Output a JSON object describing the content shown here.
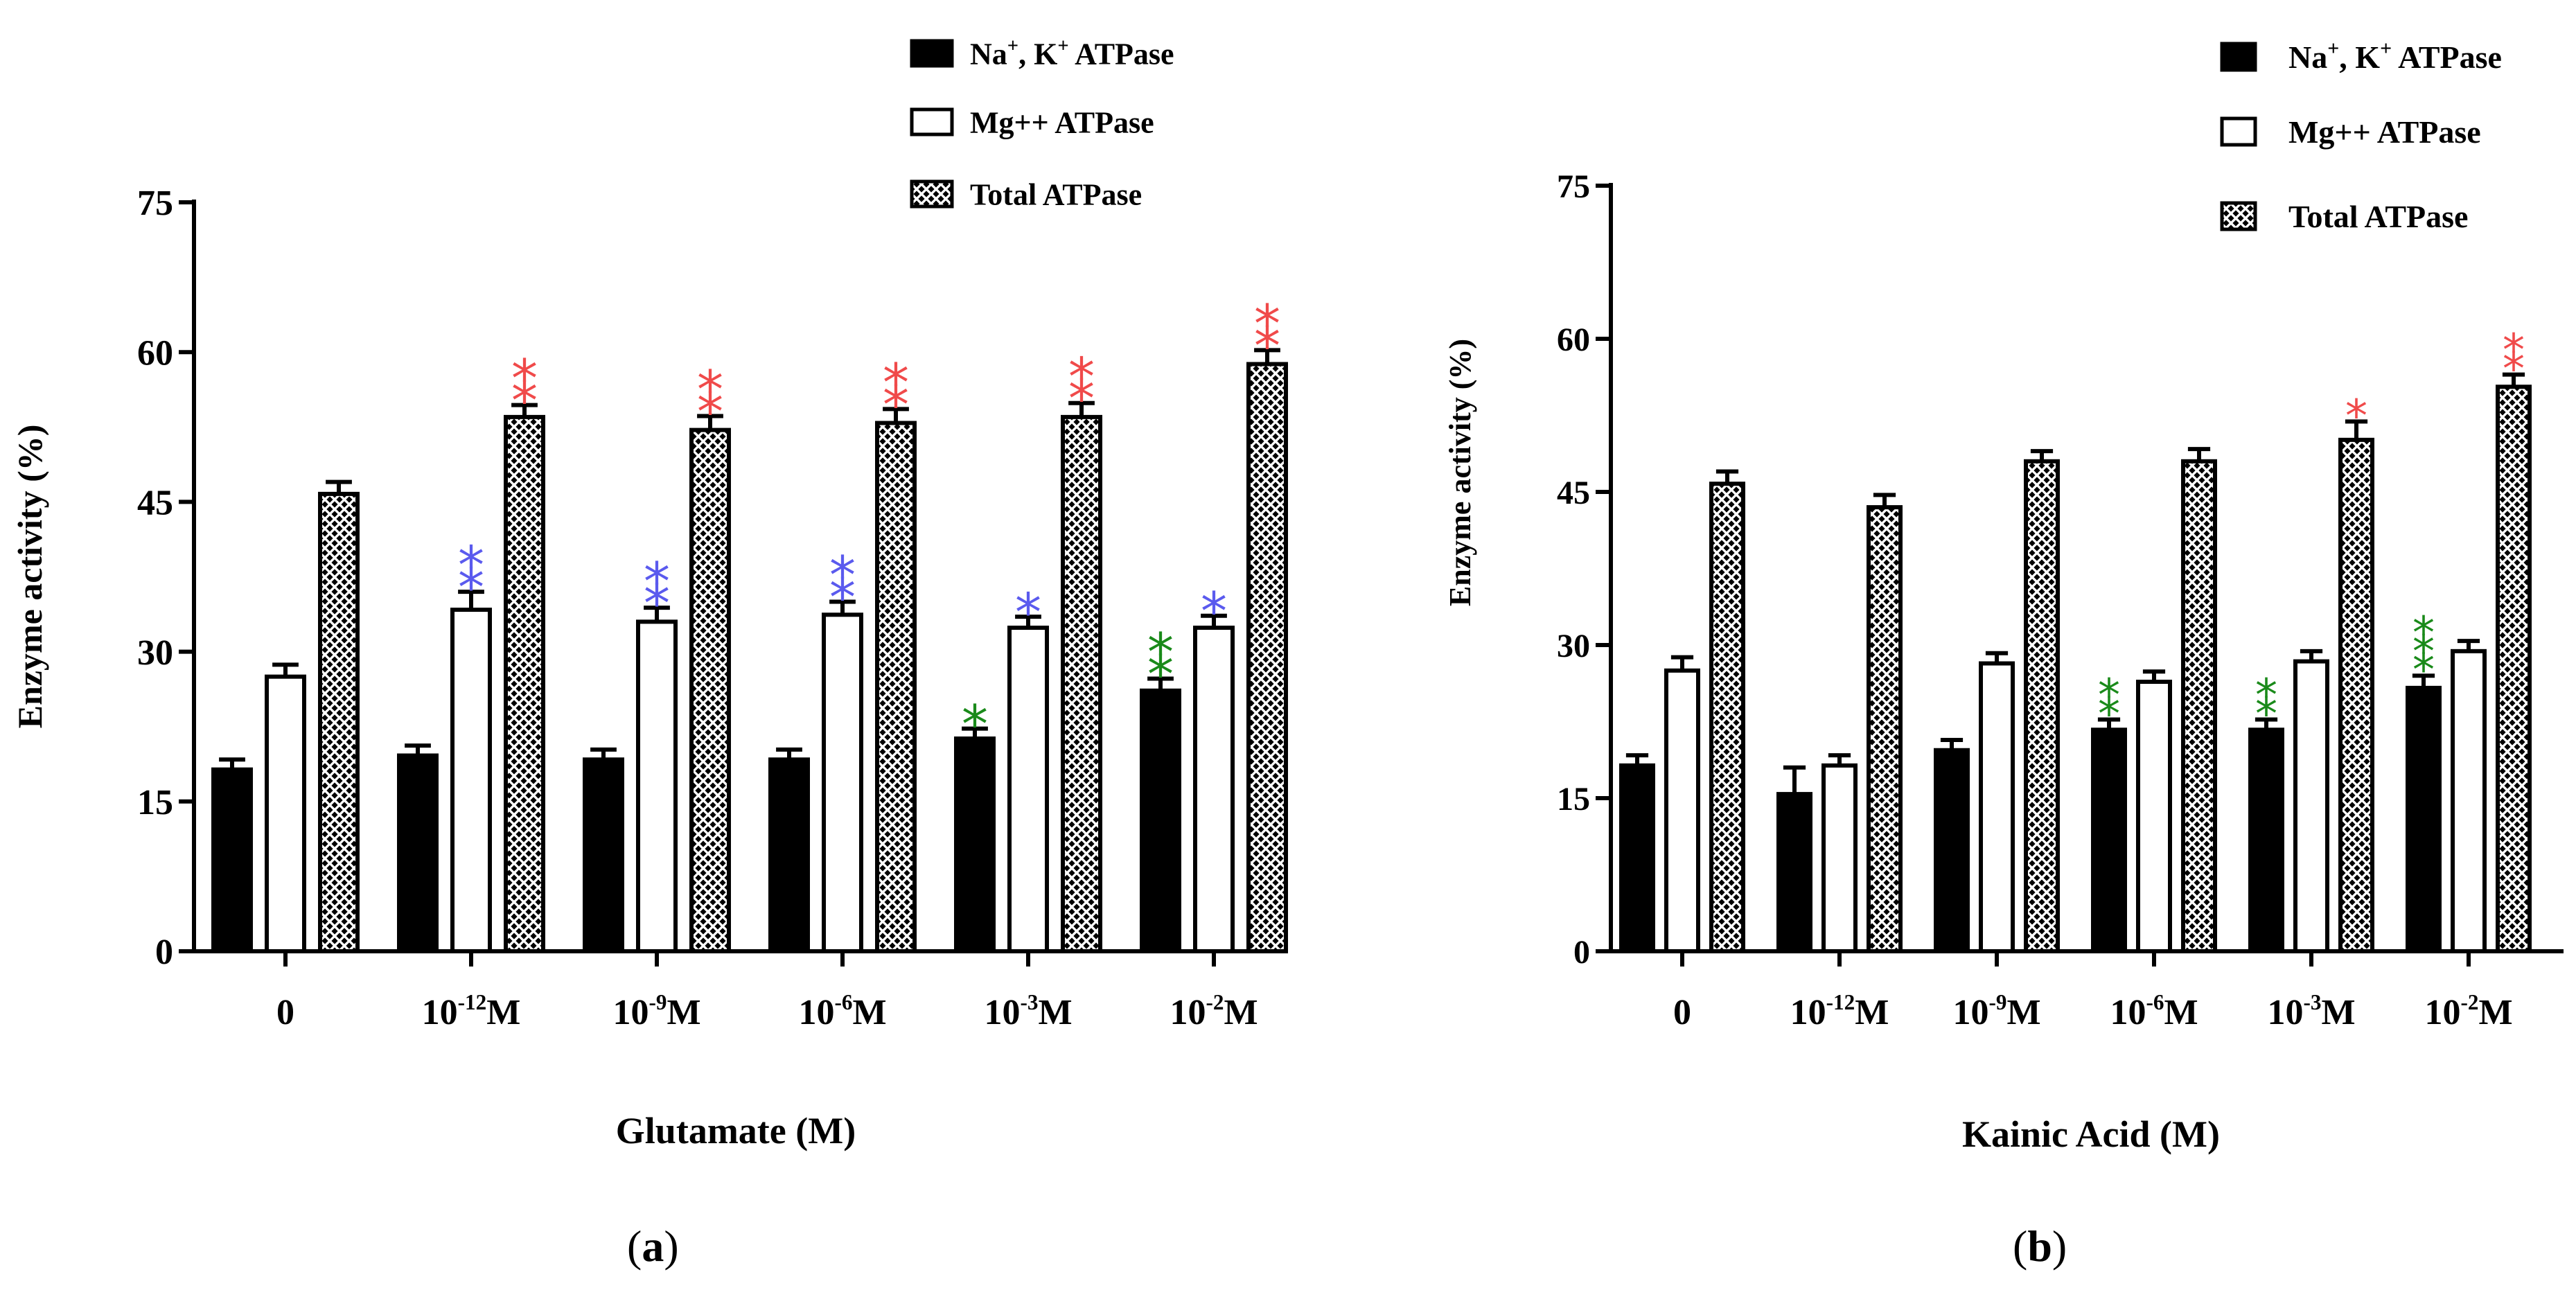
{
  "panels": [
    {
      "label_open": "(",
      "label_letter": "a",
      "label_close": ")"
    },
    {
      "label_open": "(",
      "label_letter": "b",
      "label_close": ")"
    }
  ],
  "colors": {
    "sig_total": "#f04a4a",
    "sig_mg": "#5a5aee",
    "sig_na": "#1a8a1a",
    "bar_fill": "#000000",
    "hatch_bg": "#000000",
    "hatch_line": "#ffffff"
  },
  "chart_data": [
    {
      "type": "bar",
      "title": "",
      "xlabel": "Glutamate (M)",
      "ylabel": "Enzyme activity (%)",
      "ylim": [
        0,
        75
      ],
      "yticks": [
        "0",
        "15",
        "30",
        "45",
        "60",
        "75"
      ],
      "categories": [
        "0",
        "10-12M",
        "10-9M",
        "10-6M",
        "10-3M",
        "10-2M"
      ],
      "category_labels": [
        {
          "base": "0",
          "exp": "",
          "unit": ""
        },
        {
          "base": "10",
          "exp": "-12",
          "unit": "M"
        },
        {
          "base": "10",
          "exp": "-9",
          "unit": "M"
        },
        {
          "base": "10",
          "exp": "-6",
          "unit": "M"
        },
        {
          "base": "10",
          "exp": "-3",
          "unit": "M"
        },
        {
          "base": "10",
          "exp": "-2",
          "unit": "M"
        }
      ],
      "legend": [
        {
          "name": "Na",
          "sup1": "+",
          "mid": ", K",
          "sup2": "+",
          "rest": " ATPase",
          "style": "solid"
        },
        {
          "name": "Mg++ ATPase",
          "sup1": "",
          "mid": "",
          "sup2": "",
          "rest": "",
          "style": "open"
        },
        {
          "name": "Total  ATPase",
          "sup1": "",
          "mid": "",
          "sup2": "",
          "rest": "",
          "style": "hatched"
        }
      ],
      "series": [
        {
          "name": "Na+, K+ ATPase",
          "values": [
            18.2,
            19.6,
            19.2,
            19.2,
            21.3,
            26.1
          ],
          "errors": [
            1.0,
            1.0,
            1.0,
            1.0,
            1.0,
            1.2
          ],
          "sig": [
            "",
            "",
            "",
            "",
            "*",
            "**"
          ]
        },
        {
          "name": "Mg++ ATPase",
          "values": [
            27.5,
            34.2,
            33.0,
            33.7,
            32.4,
            32.4
          ],
          "errors": [
            1.2,
            1.8,
            1.4,
            1.3,
            1.1,
            1.2
          ],
          "sig": [
            "",
            "**",
            "**",
            "**",
            "*",
            "*"
          ]
        },
        {
          "name": "Total ATPase",
          "values": [
            45.8,
            53.5,
            52.2,
            52.9,
            53.5,
            58.8
          ],
          "errors": [
            1.2,
            1.2,
            1.4,
            1.4,
            1.4,
            1.4
          ],
          "sig": [
            "",
            "**",
            "**",
            "**",
            "**",
            "**"
          ]
        }
      ]
    },
    {
      "type": "bar",
      "title": "",
      "xlabel": "Kainic Acid (M)",
      "ylabel": "Enzyme activity (%)",
      "ylim": [
        0,
        75
      ],
      "yticks": [
        "0",
        "15",
        "30",
        "45",
        "60",
        "75"
      ],
      "categories": [
        "0",
        "10-12M",
        "10-9M",
        "10-6M",
        "10-3M",
        "10-2M"
      ],
      "category_labels": [
        {
          "base": "0",
          "exp": "",
          "unit": ""
        },
        {
          "base": "10",
          "exp": "-12",
          "unit": "M"
        },
        {
          "base": "10",
          "exp": "-9",
          "unit": "M"
        },
        {
          "base": "10",
          "exp": "-6",
          "unit": "M"
        },
        {
          "base": "10",
          "exp": "-3",
          "unit": "M"
        },
        {
          "base": "10",
          "exp": "-2",
          "unit": "M"
        }
      ],
      "legend": [
        {
          "name": "Na",
          "sup1": "+",
          "mid": ", K",
          "sup2": "+",
          "rest": " ATPase",
          "style": "solid"
        },
        {
          "name": "Mg++ ATPase",
          "sup1": "",
          "mid": "",
          "sup2": "",
          "rest": "",
          "style": "open"
        },
        {
          "name": "Total  ATPase",
          "sup1": "",
          "mid": "",
          "sup2": "",
          "rest": "",
          "style": "hatched"
        }
      ],
      "series": [
        {
          "name": "Na+, K+ ATPase",
          "values": [
            18.2,
            15.4,
            19.7,
            21.7,
            21.7,
            25.8
          ],
          "errors": [
            1.0,
            2.6,
            1.0,
            1.0,
            1.0,
            1.2
          ],
          "sig": [
            "",
            "",
            "",
            "**",
            "**",
            "***"
          ]
        },
        {
          "name": "Mg++ ATPase",
          "values": [
            27.5,
            18.2,
            28.2,
            26.4,
            28.4,
            29.4
          ],
          "errors": [
            1.3,
            1.0,
            1.0,
            1.0,
            1.0,
            1.0
          ],
          "sig": [
            "",
            "",
            "",
            "",
            "",
            ""
          ]
        },
        {
          "name": "Total ATPase",
          "values": [
            45.8,
            43.5,
            48.0,
            48.0,
            50.1,
            55.3
          ],
          "errors": [
            1.2,
            1.2,
            1.0,
            1.2,
            1.8,
            1.2
          ],
          "sig": [
            "",
            "",
            "",
            "",
            "*",
            "**"
          ]
        }
      ]
    }
  ]
}
